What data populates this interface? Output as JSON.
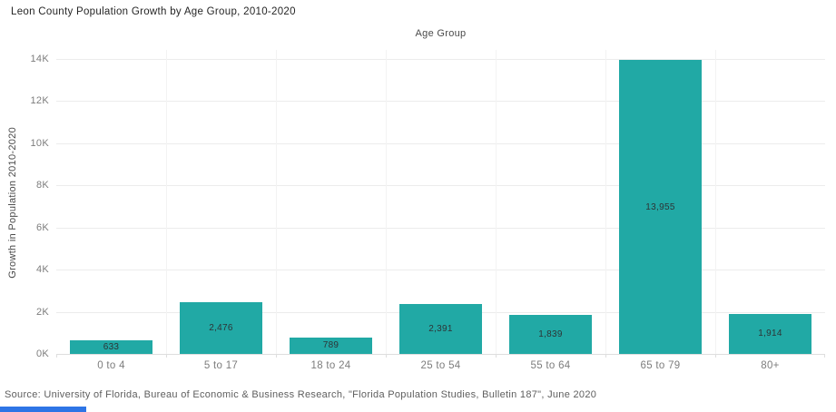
{
  "header": {
    "title": "Leon County Population Growth by Age Group, 2010-2020"
  },
  "footer": {
    "source": "Source: University of Florida, Bureau of Economic & Business Research, \"Florida Population Studies, Bulletin 187\", June 2020"
  },
  "chart_data": {
    "type": "bar",
    "title": "Leon County Population Growth by Age Group, 2010-2020",
    "xlabel": "Age Group",
    "ylabel": "Growth in Population 2010-2020",
    "categories": [
      "0 to 4",
      "5 to 17",
      "18 to 24",
      "25 to 54",
      "55 to 64",
      "65 to 79",
      "80+"
    ],
    "values": [
      633,
      2476,
      789,
      2391,
      1839,
      13955,
      1914
    ],
    "value_labels": [
      "633",
      "2,476",
      "789",
      "2,391",
      "1,839",
      "13,955",
      "1,914"
    ],
    "ylim": [
      0,
      14000
    ],
    "ytick_step": 2000,
    "ytick_labels": [
      "0K",
      "2K",
      "4K",
      "6K",
      "8K",
      "10K",
      "12K",
      "14K"
    ],
    "grid": true,
    "legend_position": "none"
  },
  "colors": {
    "bar": "#21a9a5",
    "gridline": "#ececec",
    "loading_bar": "#2e75e6"
  }
}
